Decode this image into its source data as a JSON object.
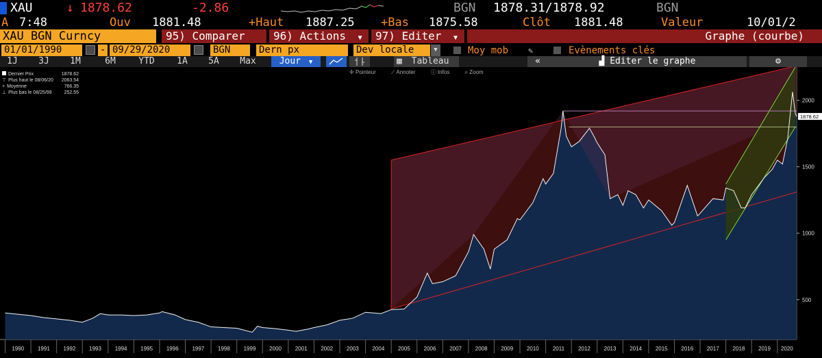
{
  "quote": {
    "ticker": "XAU",
    "arrow": "↓",
    "last": "1878.62",
    "change": "-2.86",
    "source_label": "BGN",
    "bid_ask": "1878.31/1878.92",
    "source_label2": "BGN",
    "time_prefix": "A",
    "time": "7:48",
    "open_label": "Ouv",
    "open": "1881.48",
    "high_label": "+Haut",
    "high": "1887.25",
    "low_label": "+Bas",
    "low": "1875.58",
    "close_label": "Clôt",
    "close": "1881.48",
    "value_label": "Valeur",
    "value_date": "10/01/2"
  },
  "toolbar": {
    "security": "XAU BGN Curncy",
    "compare_num": "95)",
    "compare_label": "Comparer",
    "actions_num": "96)",
    "actions_label": "Actions",
    "edit_num": "97)",
    "edit_label": "Editer",
    "chart_type": "Graphe (courbe)"
  },
  "settings": {
    "start_date": "01/01/1990",
    "dash": "-",
    "end_date": "09/29/2020",
    "source": "BGN",
    "field": "Dern px",
    "currency": "Dev locale",
    "moving_avg": "Moy mob",
    "key_events": "Evènements clés"
  },
  "periods": {
    "items": [
      "1J",
      "3J",
      "1M",
      "6M",
      "YTD",
      "1A",
      "5A",
      "Max"
    ],
    "frequency": "Jour",
    "table_label": "Tableau",
    "edit_chart": "Editer le graphe"
  },
  "tools": {
    "pointer": "Pointeur",
    "annotate": "Annoter",
    "info": "Infos",
    "zoom": "Zoom"
  },
  "legend": [
    {
      "label": "Dernier Prix",
      "value": "1878.62"
    },
    {
      "label": "Plus haut le 08/06/20",
      "value": "2063.54"
    },
    {
      "label": "Moyenne",
      "value": "766.35"
    },
    {
      "label": "Plus bas le 08/25/99",
      "value": "252.55"
    }
  ],
  "colors": {
    "amber": "#fb8b1e",
    "red": "#ff4136",
    "area_fill": "#13294b",
    "channel_red": "#e02020",
    "channel_green": "#7ad93a",
    "cursor_line": "#b07ab0"
  },
  "chart_data": {
    "type": "line",
    "title": "",
    "xlabel": "",
    "ylabel": "",
    "xlim": [
      1989.8,
      2020.75
    ],
    "ylim": [
      200,
      2250
    ],
    "y_ticks": [
      500,
      1000,
      1500,
      2000
    ],
    "x_ticks": [
      "1990",
      "1991",
      "1992",
      "1993",
      "1994",
      "1995",
      "1996",
      "1997",
      "1998",
      "1999",
      "2000",
      "2001",
      "2002",
      "2003",
      "2004",
      "2005",
      "2006",
      "2007",
      "2008",
      "2009",
      "2010",
      "2011",
      "2012",
      "2013",
      "2014",
      "2015",
      "2016",
      "2017",
      "2018",
      "2019",
      "2020"
    ],
    "last_price_label": "1878.62",
    "series": [
      {
        "name": "Dernier Prix",
        "x": [
          1990.0,
          1990.5,
          1991.0,
          1991.5,
          1992.0,
          1992.5,
          1993.0,
          1993.4,
          1993.7,
          1994.0,
          1994.5,
          1995.0,
          1995.5,
          1996.0,
          1996.1,
          1996.6,
          1997.0,
          1997.5,
          1998.0,
          1998.5,
          1999.0,
          1999.6,
          1999.8,
          2000.0,
          2000.5,
          2001.0,
          2001.3,
          2001.8,
          2002.0,
          2002.5,
          2003.0,
          2003.5,
          2004.0,
          2004.3,
          2004.6,
          2005.0,
          2005.5,
          2006.0,
          2006.4,
          2006.6,
          2007.0,
          2007.5,
          2008.0,
          2008.2,
          2008.6,
          2008.85,
          2009.0,
          2009.5,
          2009.9,
          2010.0,
          2010.5,
          2010.9,
          2011.0,
          2011.3,
          2011.6,
          2011.67,
          2011.8,
          2012.0,
          2012.3,
          2012.7,
          2012.9,
          2013.0,
          2013.3,
          2013.5,
          2013.8,
          2014.0,
          2014.2,
          2014.5,
          2014.8,
          2015.0,
          2015.5,
          2015.9,
          2016.0,
          2016.5,
          2016.9,
          2017.0,
          2017.5,
          2017.9,
          2018.0,
          2018.3,
          2018.6,
          2018.75,
          2019.0,
          2019.5,
          2019.8,
          2020.0,
          2020.2,
          2020.4,
          2020.59,
          2020.7,
          2020.75
        ],
        "y": [
          400,
          390,
          380,
          365,
          355,
          345,
          330,
          360,
          395,
          385,
          385,
          380,
          385,
          400,
          410,
          385,
          350,
          330,
          295,
          290,
          285,
          255,
          300,
          290,
          282,
          270,
          262,
          280,
          290,
          310,
          345,
          360,
          405,
          400,
          395,
          425,
          430,
          520,
          700,
          620,
          635,
          680,
          860,
          990,
          880,
          730,
          880,
          950,
          1110,
          1100,
          1230,
          1410,
          1370,
          1450,
          1790,
          1920,
          1730,
          1650,
          1690,
          1790,
          1720,
          1680,
          1590,
          1260,
          1290,
          1210,
          1320,
          1290,
          1190,
          1250,
          1170,
          1060,
          1080,
          1360,
          1130,
          1150,
          1260,
          1250,
          1340,
          1320,
          1190,
          1190,
          1290,
          1420,
          1480,
          1550,
          1520,
          1710,
          2063,
          1900,
          1878
        ]
      }
    ]
  }
}
